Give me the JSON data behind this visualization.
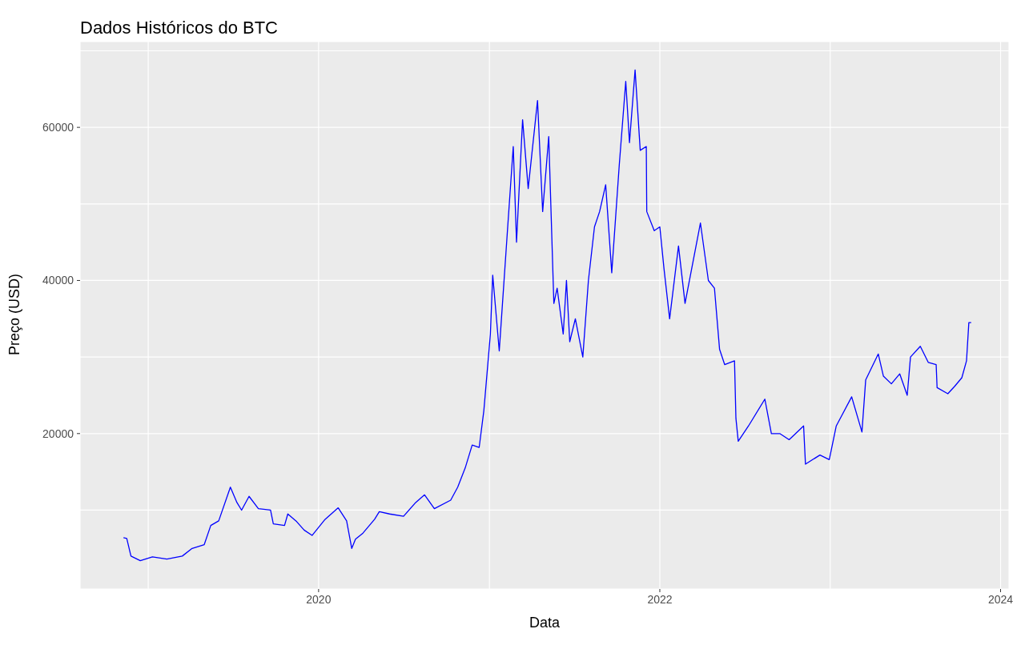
{
  "chart_data": {
    "type": "line",
    "title": "Dados Históricos do BTC",
    "xlabel": "Data",
    "ylabel": "Preço (USD)",
    "grid": true,
    "xlim": [
      "2018-08-08",
      "2024-01-19"
    ],
    "xticks": [
      {
        "value": "2019-01-01",
        "label": null
      },
      {
        "value": "2020-01-01",
        "label": "2020"
      },
      {
        "value": "2021-01-01",
        "label": null
      },
      {
        "value": "2022-01-01",
        "label": "2022"
      },
      {
        "value": "2023-01-01",
        "label": null
      },
      {
        "value": "2024-01-01",
        "label": "2024"
      }
    ],
    "ylim": [
      -300,
      71200
    ],
    "yticks": [
      {
        "value": 10000,
        "label": null
      },
      20000,
      {
        "value": 30000,
        "label": null
      },
      40000,
      {
        "value": 50000,
        "label": null
      },
      60000,
      {
        "value": 70000,
        "label": null
      }
    ],
    "series": [
      {
        "color": "#0000ff",
        "x": [
          "2018-11-09",
          "2018-11-16",
          "2018-11-25",
          "2018-12-15",
          "2019-01-10",
          "2019-02-10",
          "2019-03-15",
          "2019-04-05",
          "2019-05-01",
          "2019-05-15",
          "2019-06-01",
          "2019-06-26",
          "2019-07-10",
          "2019-07-20",
          "2019-08-05",
          "2019-08-25",
          "2019-09-20",
          "2019-09-26",
          "2019-10-20",
          "2019-10-27",
          "2019-11-15",
          "2019-12-01",
          "2019-12-18",
          "2020-01-15",
          "2020-02-12",
          "2020-03-01",
          "2020-03-12",
          "2020-03-20",
          "2020-04-05",
          "2020-04-30",
          "2020-05-10",
          "2020-06-01",
          "2020-07-01",
          "2020-07-27",
          "2020-08-15",
          "2020-09-05",
          "2020-10-10",
          "2020-10-25",
          "2020-11-10",
          "2020-11-25",
          "2020-12-10",
          "2020-12-20",
          "2021-01-03",
          "2021-01-08",
          "2021-01-22",
          "2021-02-08",
          "2021-02-21",
          "2021-02-28",
          "2021-03-13",
          "2021-03-25",
          "2021-04-14",
          "2021-04-25",
          "2021-05-08",
          "2021-05-19",
          "2021-05-26",
          "2021-06-08",
          "2021-06-15",
          "2021-06-22",
          "2021-07-04",
          "2021-07-20",
          "2021-08-01",
          "2021-08-14",
          "2021-08-25",
          "2021-09-07",
          "2021-09-20",
          "2021-10-06",
          "2021-10-20",
          "2021-10-28",
          "2021-11-09",
          "2021-11-20",
          "2021-12-03",
          "2021-12-04",
          "2021-12-20",
          "2022-01-01",
          "2022-01-10",
          "2022-01-22",
          "2022-02-10",
          "2022-02-24",
          "2022-03-29",
          "2022-04-15",
          "2022-04-28",
          "2022-05-09",
          "2022-05-20",
          "2022-06-10",
          "2022-06-13",
          "2022-06-18",
          "2022-07-10",
          "2022-08-14",
          "2022-08-28",
          "2022-09-15",
          "2022-10-05",
          "2022-11-05",
          "2022-11-09",
          "2022-12-10",
          "2022-12-30",
          "2023-01-14",
          "2023-02-16",
          "2023-03-10",
          "2023-03-18",
          "2023-04-14",
          "2023-04-25",
          "2023-05-12",
          "2023-05-30",
          "2023-06-15",
          "2023-06-22",
          "2023-07-13",
          "2023-07-30",
          "2023-08-16",
          "2023-08-18",
          "2023-09-10",
          "2023-09-25",
          "2023-10-10",
          "2023-10-20",
          "2023-10-25",
          "2023-10-30"
        ],
        "values": [
          6400,
          6300,
          4000,
          3400,
          3900,
          3600,
          4000,
          5000,
          5500,
          8000,
          8600,
          13000,
          11000,
          10000,
          11800,
          10200,
          10000,
          8200,
          8000,
          9500,
          8500,
          7400,
          6700,
          8800,
          10300,
          8600,
          5000,
          6200,
          7000,
          8800,
          9800,
          9500,
          9200,
          11000,
          12000,
          10200,
          11300,
          13000,
          15500,
          18500,
          18200,
          23000,
          33000,
          40700,
          30800,
          46000,
          57500,
          45000,
          61000,
          52000,
          63500,
          49000,
          58800,
          37000,
          39000,
          33000,
          40000,
          32000,
          35000,
          30000,
          40000,
          47000,
          49000,
          52500,
          41000,
          55000,
          66000,
          58000,
          67500,
          57000,
          57500,
          49000,
          46500,
          47000,
          41500,
          35000,
          44500,
          37000,
          47500,
          40000,
          39000,
          31000,
          29000,
          29500,
          22000,
          19000,
          21000,
          24500,
          20000,
          20000,
          19200,
          21000,
          16000,
          17200,
          16600,
          21000,
          24800,
          20200,
          27000,
          30400,
          27500,
          26500,
          27800,
          25000,
          30000,
          31400,
          29300,
          29000,
          26000,
          25200,
          26200,
          27300,
          29500,
          34500,
          34500
        ]
      }
    ]
  }
}
